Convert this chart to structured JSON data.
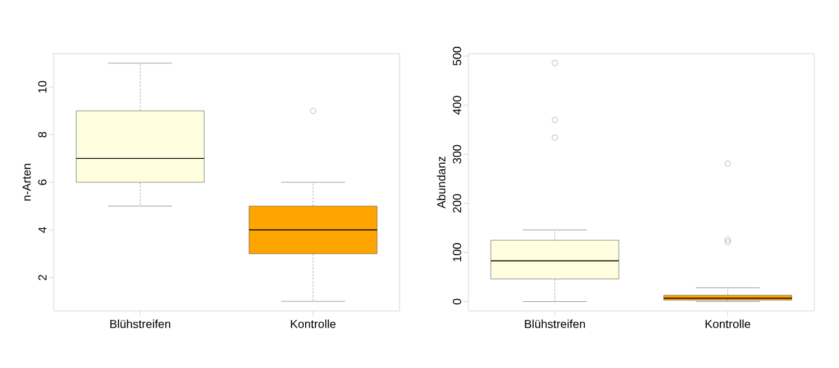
{
  "chart_data": [
    {
      "type": "box",
      "ylabel": "n-Arten",
      "categories": [
        "Blühstreifen",
        "Kontrolle"
      ],
      "colors": [
        "#ffffe0",
        "#ffa500"
      ],
      "ylim": [
        0.6,
        11.4
      ],
      "yticks": [
        2,
        4,
        6,
        8,
        10
      ],
      "boxes": [
        {
          "low": 5,
          "q1": 6,
          "median": 7,
          "q3": 9,
          "high": 11
        },
        {
          "low": 1,
          "q1": 3,
          "median": 4,
          "q3": 5,
          "high": 6,
          "outliers": [
            9
          ]
        }
      ]
    },
    {
      "type": "box",
      "ylabel": "Abundanz",
      "categories": [
        "Blühstreifen",
        "Kontrolle"
      ],
      "colors": [
        "#ffffe0",
        "#ffa500"
      ],
      "ylim": [
        -19,
        505
      ],
      "yticks": [
        0,
        100,
        200,
        300,
        400,
        500
      ],
      "boxes": [
        {
          "low": 0,
          "q1": 46,
          "median": 83,
          "q3": 125,
          "high": 146,
          "outliers": [
            486,
            370,
            334
          ]
        },
        {
          "low": 0,
          "q1": 3,
          "median": 7,
          "q3": 13,
          "high": 28,
          "outliers": [
            281,
            126,
            121
          ]
        }
      ]
    }
  ]
}
